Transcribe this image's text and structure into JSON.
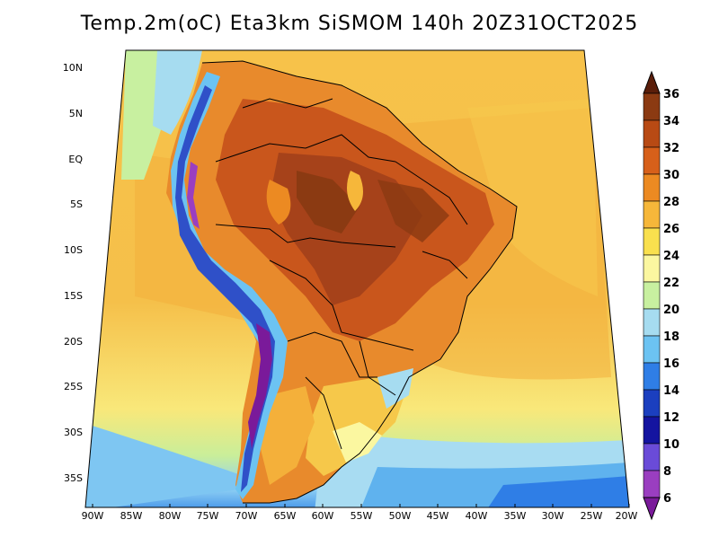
{
  "title": "Temp.2m(oC) Eta3km SiSMOM 140h 20Z31OCT2025",
  "x_axis_labels": [
    "90W",
    "85W",
    "80W",
    "75W",
    "70W",
    "65W",
    "60W",
    "55W",
    "50W",
    "45W",
    "40W",
    "35W",
    "30W",
    "25W",
    "20W"
  ],
  "y_axis_labels": [
    "10N",
    "5N",
    "EQ",
    "5S",
    "10S",
    "15S",
    "20S",
    "25S",
    "30S",
    "35S"
  ],
  "colorbar": {
    "labels": [
      "36",
      "34",
      "32",
      "30",
      "28",
      "26",
      "24",
      "22",
      "20",
      "18",
      "16",
      "14",
      "12",
      "10",
      "8",
      "6"
    ],
    "colors": [
      "#5a1e0a",
      "#8b3a12",
      "#b84a14",
      "#d7601a",
      "#ec8a22",
      "#f6b73a",
      "#f9e04e",
      "#fbf7a0",
      "#c8f0a0",
      "#a6dcf0",
      "#6cc3f2",
      "#2f7ee6",
      "#1b3fbf",
      "#1414a0",
      "#6a4bd8",
      "#9a3ec0",
      "#7a1a9a"
    ]
  }
}
